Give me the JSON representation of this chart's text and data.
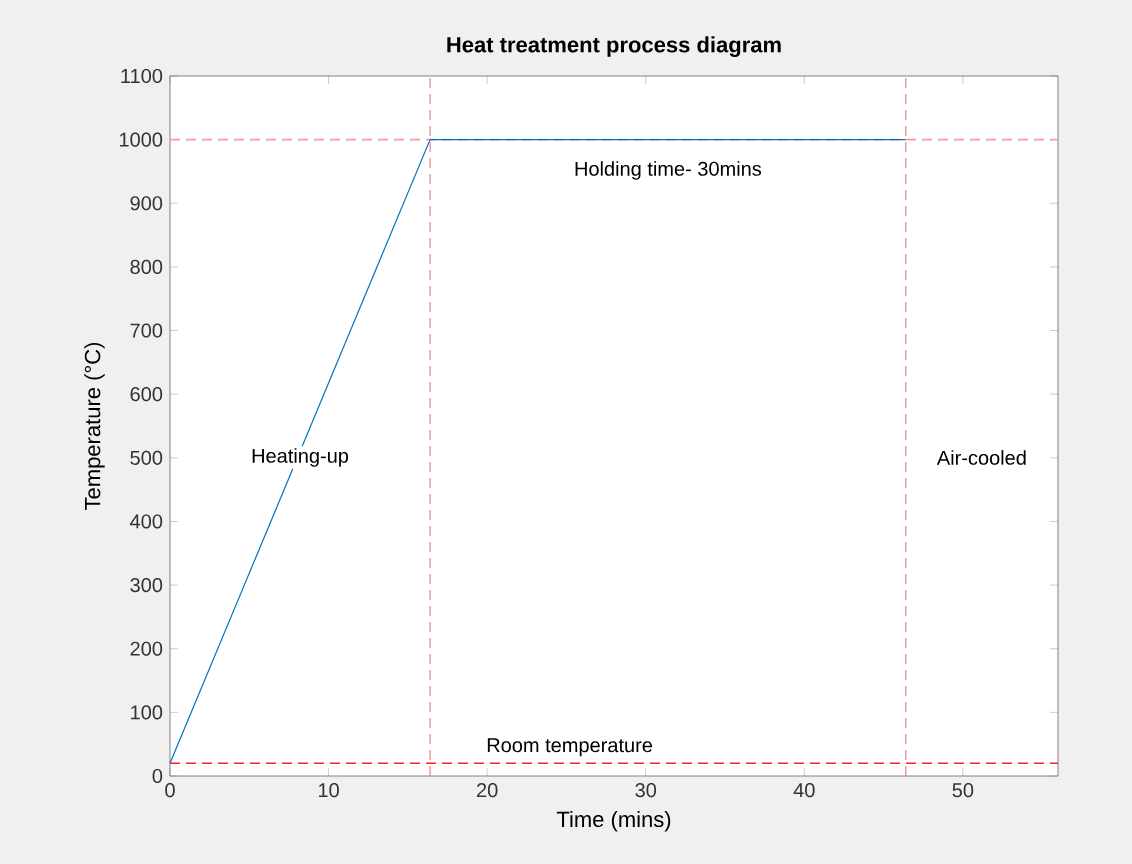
{
  "chart_data": {
    "type": "line",
    "title": "Heat treatment process diagram",
    "xlabel": "Time (mins)",
    "ylabel": "Temperature (°C)",
    "x": [
      0,
      16.4,
      46.4
    ],
    "series": [
      {
        "color": "#0072bd",
        "values": [
          20,
          1000,
          1000
        ]
      }
    ],
    "xlim": [
      0,
      56
    ],
    "ylim": [
      0,
      1100
    ],
    "xticks": [
      0,
      10,
      20,
      30,
      40,
      50
    ],
    "yticks": [
      0,
      100,
      200,
      300,
      400,
      500,
      600,
      700,
      800,
      900,
      1000,
      1100
    ],
    "ref_lines": [
      {
        "axis": "y",
        "value": 1000,
        "color": "#ff9999",
        "line_style": "dashed"
      },
      {
        "axis": "y",
        "value": 20,
        "label": "Room temperature",
        "color": "#ff2020",
        "line_style": "dashed"
      },
      {
        "axis": "x",
        "value": 16.4,
        "color": "#e08888",
        "line_style": "dashed"
      },
      {
        "axis": "x",
        "value": 46.4,
        "color": "#e08888",
        "line_style": "dashed"
      }
    ],
    "annotations": [
      "Heating-up",
      "Holding time- 30mins",
      "Air-cooled"
    ],
    "grid": false,
    "marker": "none",
    "line_style": "solid"
  }
}
